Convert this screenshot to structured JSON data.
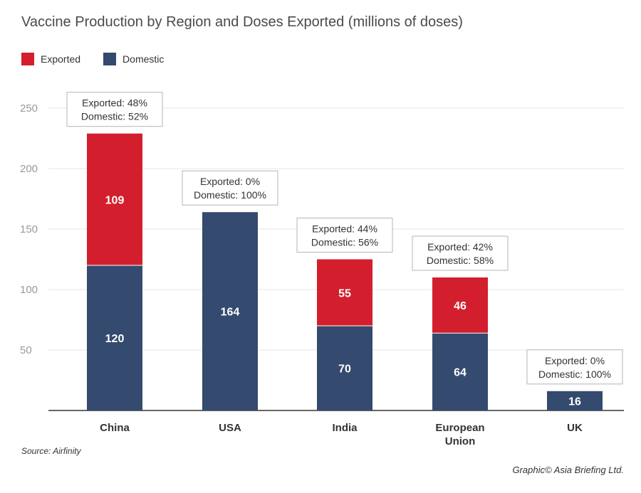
{
  "title": "Vaccine Production by Region and Doses Exported (millions of doses)",
  "legend": [
    {
      "name": "Exported",
      "color": "#d31f2d"
    },
    {
      "name": "Domestic",
      "color": "#344a6e"
    }
  ],
  "source": "Source: Airfinity",
  "credit": "Graphic© Asia Briefing Ltd.",
  "chart_data": {
    "type": "bar",
    "stacked": true,
    "categories": [
      [
        "China"
      ],
      [
        "USA"
      ],
      [
        "India"
      ],
      [
        "European",
        "Union"
      ],
      [
        "UK"
      ]
    ],
    "series": [
      {
        "name": "Domestic",
        "color": "#344a6e",
        "values": [
          120,
          164,
          70,
          64,
          16
        ]
      },
      {
        "name": "Exported",
        "color": "#d31f2d",
        "values": [
          109,
          0,
          55,
          46,
          0
        ]
      }
    ],
    "annotations": [
      [
        "Exported: 48%",
        "Domestic: 52%"
      ],
      [
        "Exported: 0%",
        "Domestic: 100%"
      ],
      [
        "Exported: 44%",
        "Domestic: 56%"
      ],
      [
        "Exported: 42%",
        "Domestic: 58%"
      ],
      [
        "Exported: 0%",
        "Domestic: 100%"
      ]
    ],
    "yticks": [
      50,
      100,
      150,
      200,
      250
    ],
    "ylim": [
      0,
      250
    ],
    "grid": true,
    "legend_position": "top-left"
  }
}
